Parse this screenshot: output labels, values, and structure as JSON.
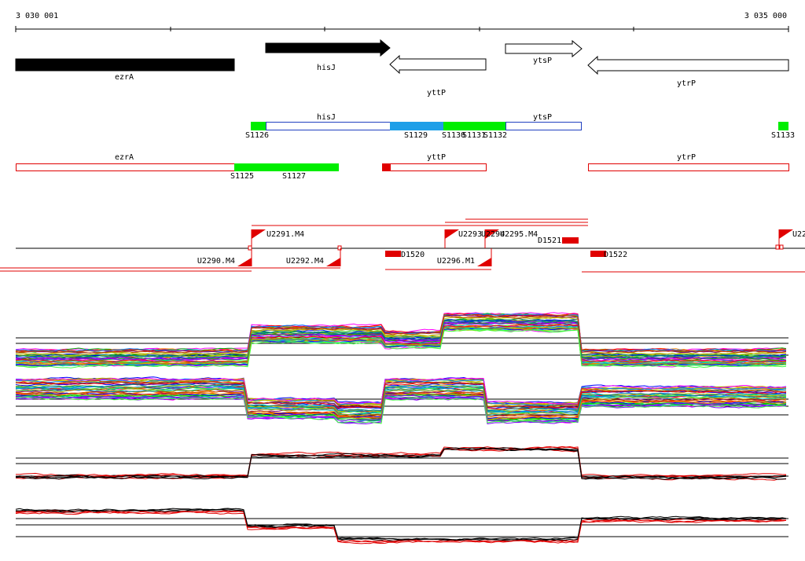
{
  "scale": {
    "start": "3 030 001",
    "end": "3 035 000"
  },
  "genes": [
    {
      "label": "ezrA"
    },
    {
      "label": "hisJ"
    },
    {
      "label": "yttP"
    },
    {
      "label": "ytsP"
    },
    {
      "label": "ytrP"
    }
  ],
  "segments_top": {
    "genes": [
      "hisJ",
      "ytsP"
    ],
    "labels": [
      "S1126",
      "S1129",
      "S1130",
      "S1131",
      "S1132",
      "S1133"
    ]
  },
  "segments_bottom": {
    "genes": [
      "ezrA",
      "yttP",
      "ytrP"
    ],
    "labels": [
      "S1125",
      "S1127"
    ]
  },
  "markers": {
    "up": [
      "U2291.M4",
      "U2293",
      "U2294",
      "U2295.M4",
      "U22"
    ],
    "down": [
      "U2290.M4",
      "U2292.M4",
      "U2296.M1"
    ],
    "blocks": [
      "D1520",
      "D1521",
      "D1522"
    ]
  }
}
